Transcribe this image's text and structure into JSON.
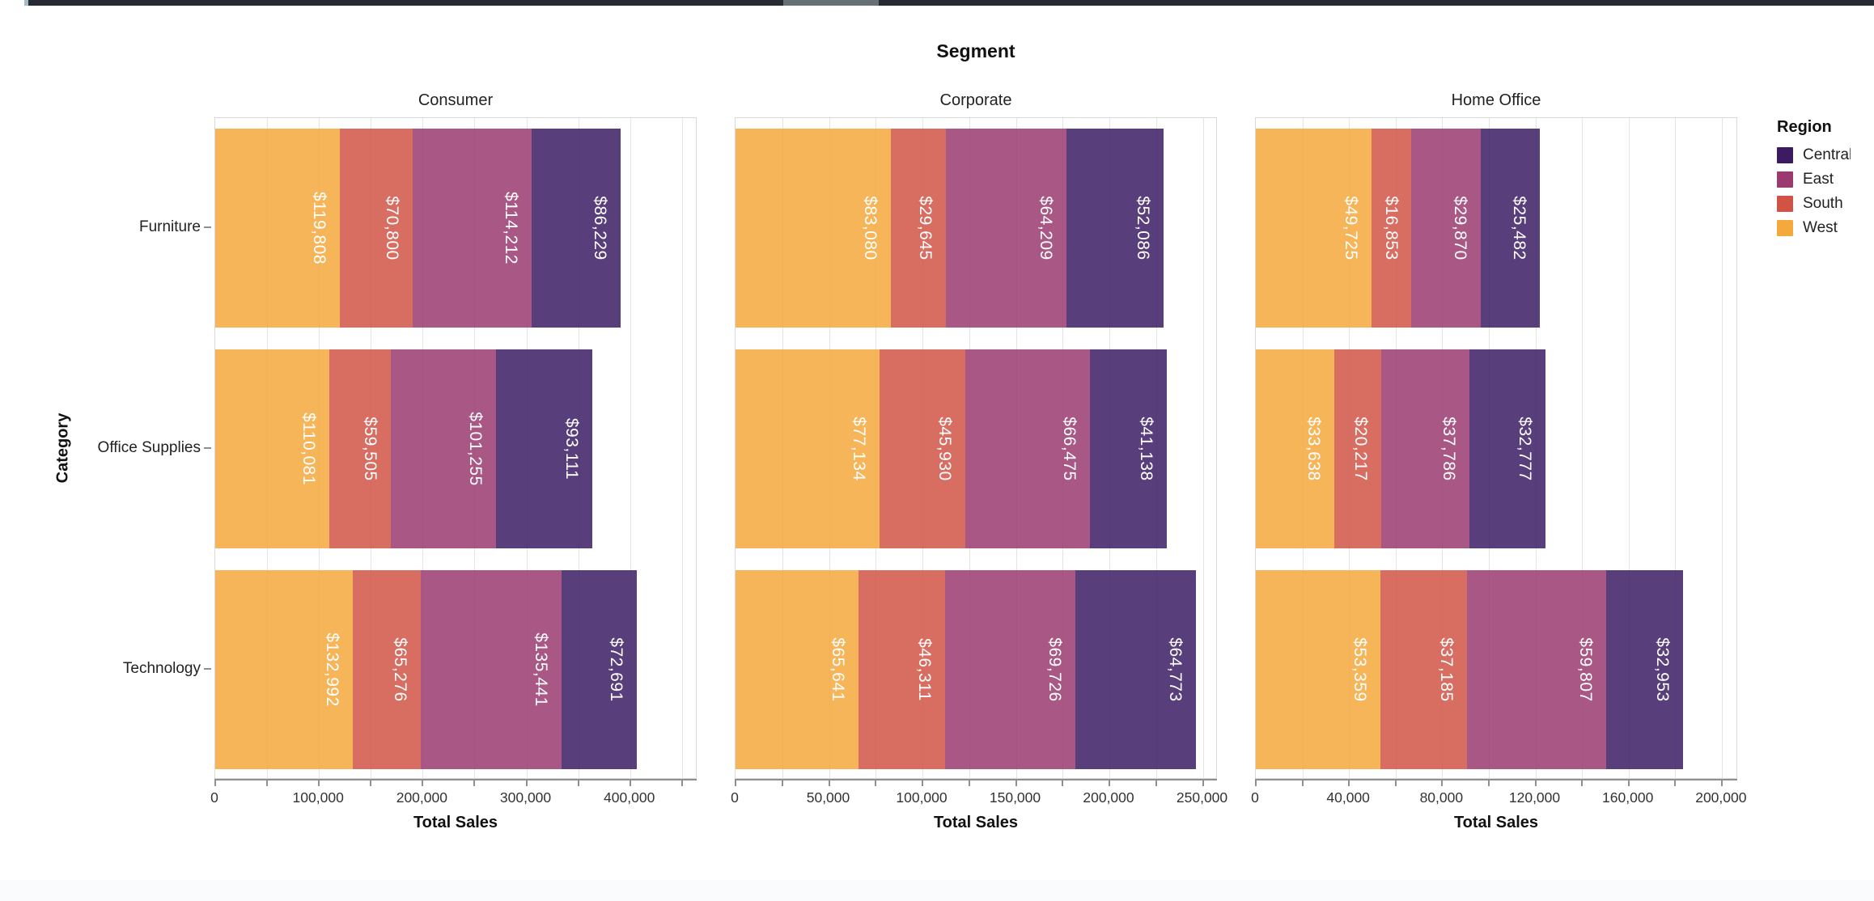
{
  "chart_data": {
    "type": "bar",
    "orientation": "horizontal",
    "stacked": true,
    "grid": true,
    "facet_title": "Segment",
    "xlabel": "Total Sales",
    "ylabel": "Category",
    "categories": [
      "Furniture",
      "Office Supplies",
      "Technology"
    ],
    "stack_order": [
      "West",
      "South",
      "East",
      "Central"
    ],
    "bar_opacity": 0.85,
    "region_colors": {
      "Central": "#3B1C63",
      "East": "#9A3A6F",
      "South": "#D15345",
      "West": "#F5A83C"
    },
    "legend": {
      "title": "Region",
      "position": "right",
      "entries": [
        {
          "label": "Central",
          "color": "#3B1C63"
        },
        {
          "label": "East",
          "color": "#9A3A6F"
        },
        {
          "label": "South",
          "color": "#D15345"
        },
        {
          "label": "West",
          "color": "#F5A83C"
        }
      ]
    },
    "facets": [
      {
        "label": "Consumer",
        "axis": {
          "max": 465000,
          "minor_step": 50000,
          "major_ticks": [
            0,
            100000,
            200000,
            300000,
            400000
          ],
          "major_tick_labels": [
            "0",
            "100,000",
            "200,000",
            "300,000",
            "400,000"
          ],
          "title": "Total Sales"
        },
        "rows": [
          {
            "category": "Furniture",
            "values": {
              "West": 119808,
              "South": 70800,
              "East": 114212,
              "Central": 86229
            },
            "labels": {
              "West": "$119,808",
              "South": "$70,800",
              "East": "$114,212",
              "Central": "$86,229"
            }
          },
          {
            "category": "Office Supplies",
            "values": {
              "West": 110081,
              "South": 59505,
              "East": 101255,
              "Central": 93111
            },
            "labels": {
              "West": "$110,081",
              "South": "$59,505",
              "East": "$101,255",
              "Central": "$93,111"
            }
          },
          {
            "category": "Technology",
            "values": {
              "West": 132992,
              "South": 65276,
              "East": 135441,
              "Central": 72691
            },
            "labels": {
              "West": "$132,992",
              "South": "$65,276",
              "East": "$135,441",
              "Central": "$72,691"
            }
          }
        ]
      },
      {
        "label": "Corporate",
        "axis": {
          "max": 258000,
          "minor_step": 25000,
          "major_ticks": [
            0,
            50000,
            100000,
            150000,
            200000,
            250000
          ],
          "major_tick_labels": [
            "0",
            "50,000",
            "100,000",
            "150,000",
            "200,000",
            "250,000"
          ],
          "title": "Total Sales"
        },
        "rows": [
          {
            "category": "Furniture",
            "values": {
              "West": 83080,
              "South": 29645,
              "East": 64209,
              "Central": 52086
            },
            "labels": {
              "West": "$83,080",
              "South": "$29,645",
              "East": "$64,209",
              "Central": "$52,086"
            }
          },
          {
            "category": "Office Supplies",
            "values": {
              "West": 77134,
              "South": 45930,
              "East": 66475,
              "Central": 41138
            },
            "labels": {
              "West": "$77,134",
              "South": "$45,930",
              "East": "$66,475",
              "Central": "$41,138"
            }
          },
          {
            "category": "Technology",
            "values": {
              "West": 65641,
              "South": 46311,
              "East": 69726,
              "Central": 64773
            },
            "labels": {
              "West": "$65,641",
              "South": "$46,311",
              "East": "$69,726",
              "Central": "$64,773"
            }
          }
        ]
      },
      {
        "label": "Home Office",
        "axis": {
          "max": 207000,
          "minor_step": 20000,
          "major_ticks": [
            0,
            40000,
            80000,
            120000,
            160000,
            200000
          ],
          "major_tick_labels": [
            "0",
            "40,000",
            "80,000",
            "120,000",
            "160,000",
            "200,000"
          ],
          "title": "Total Sales"
        },
        "rows": [
          {
            "category": "Furniture",
            "values": {
              "West": 49725,
              "South": 16853,
              "East": 29870,
              "Central": 25482
            },
            "labels": {
              "West": "$49,725",
              "South": "$16,853",
              "East": "$29,870",
              "Central": "$25,482"
            }
          },
          {
            "category": "Office Supplies",
            "values": {
              "West": 33638,
              "South": 20217,
              "East": 37786,
              "Central": 32777
            },
            "labels": {
              "West": "$33,638",
              "South": "$20,217",
              "East": "$37,786",
              "Central": "$32,777"
            }
          },
          {
            "category": "Technology",
            "values": {
              "West": 53359,
              "South": 37185,
              "East": 59807,
              "Central": 32953
            },
            "labels": {
              "West": "$53,359",
              "South": "$37,185",
              "East": "$59,807",
              "Central": "$32,953"
            }
          }
        ]
      }
    ]
  }
}
